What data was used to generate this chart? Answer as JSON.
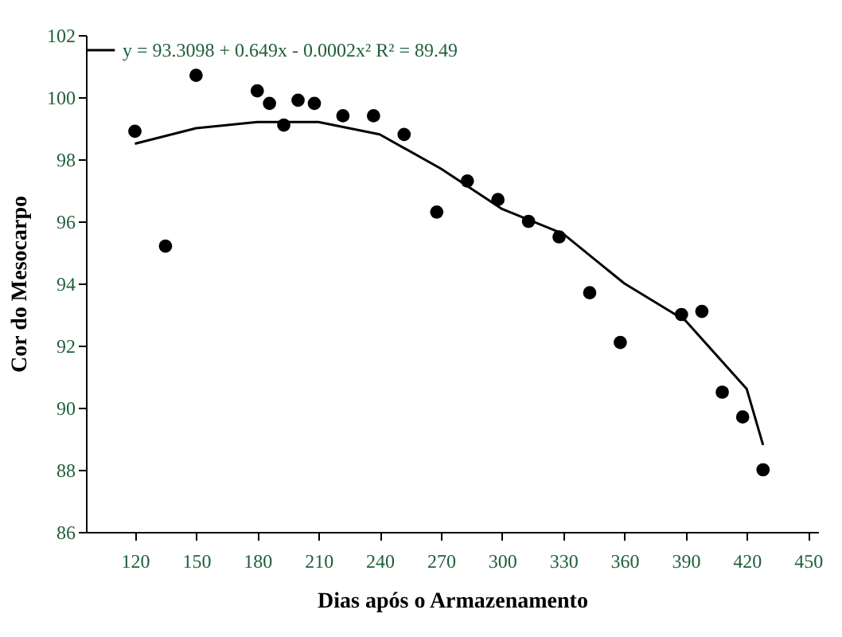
{
  "chart_data": {
    "type": "scatter",
    "xlabel": "Dias após o Armazenamento",
    "ylabel": "Cor do Mesocarpo",
    "xlim": [
      96,
      455
    ],
    "xticks": [
      120,
      150,
      180,
      210,
      240,
      270,
      300,
      330,
      360,
      390,
      420,
      450
    ],
    "ylim": [
      86,
      102
    ],
    "yticks": [
      86,
      88,
      90,
      92,
      94,
      96,
      98,
      100,
      102
    ],
    "grid": false,
    "legend": "top left",
    "series": [
      {
        "marker": "circle",
        "color": "#000000",
        "x": [
          120,
          135,
          150,
          180,
          186,
          193,
          200,
          208,
          222,
          237,
          252,
          268,
          283,
          298,
          313,
          328,
          343,
          358,
          388,
          398,
          408,
          418,
          428
        ],
        "values": [
          98.9,
          95.2,
          100.7,
          100.2,
          99.8,
          99.1,
          99.9,
          99.8,
          99.4,
          99.4,
          98.8,
          96.3,
          97.3,
          96.7,
          96.0,
          95.5,
          93.7,
          92.1,
          93.0,
          93.1,
          90.5,
          89.7,
          88.0
        ]
      },
      {
        "type": "line",
        "name": "y = 93.3098 + 0.649x - 0.0002x²  R² = 89.49",
        "color": "#000000",
        "line_style": "solid",
        "marker": "none",
        "x": [
          120,
          150,
          180,
          210,
          240,
          270,
          300,
          330,
          360,
          390,
          420,
          428
        ],
        "values": [
          98.5,
          99.0,
          99.2,
          99.2,
          98.8,
          97.7,
          96.4,
          95.6,
          94.0,
          92.8,
          90.6,
          88.8
        ]
      }
    ]
  }
}
